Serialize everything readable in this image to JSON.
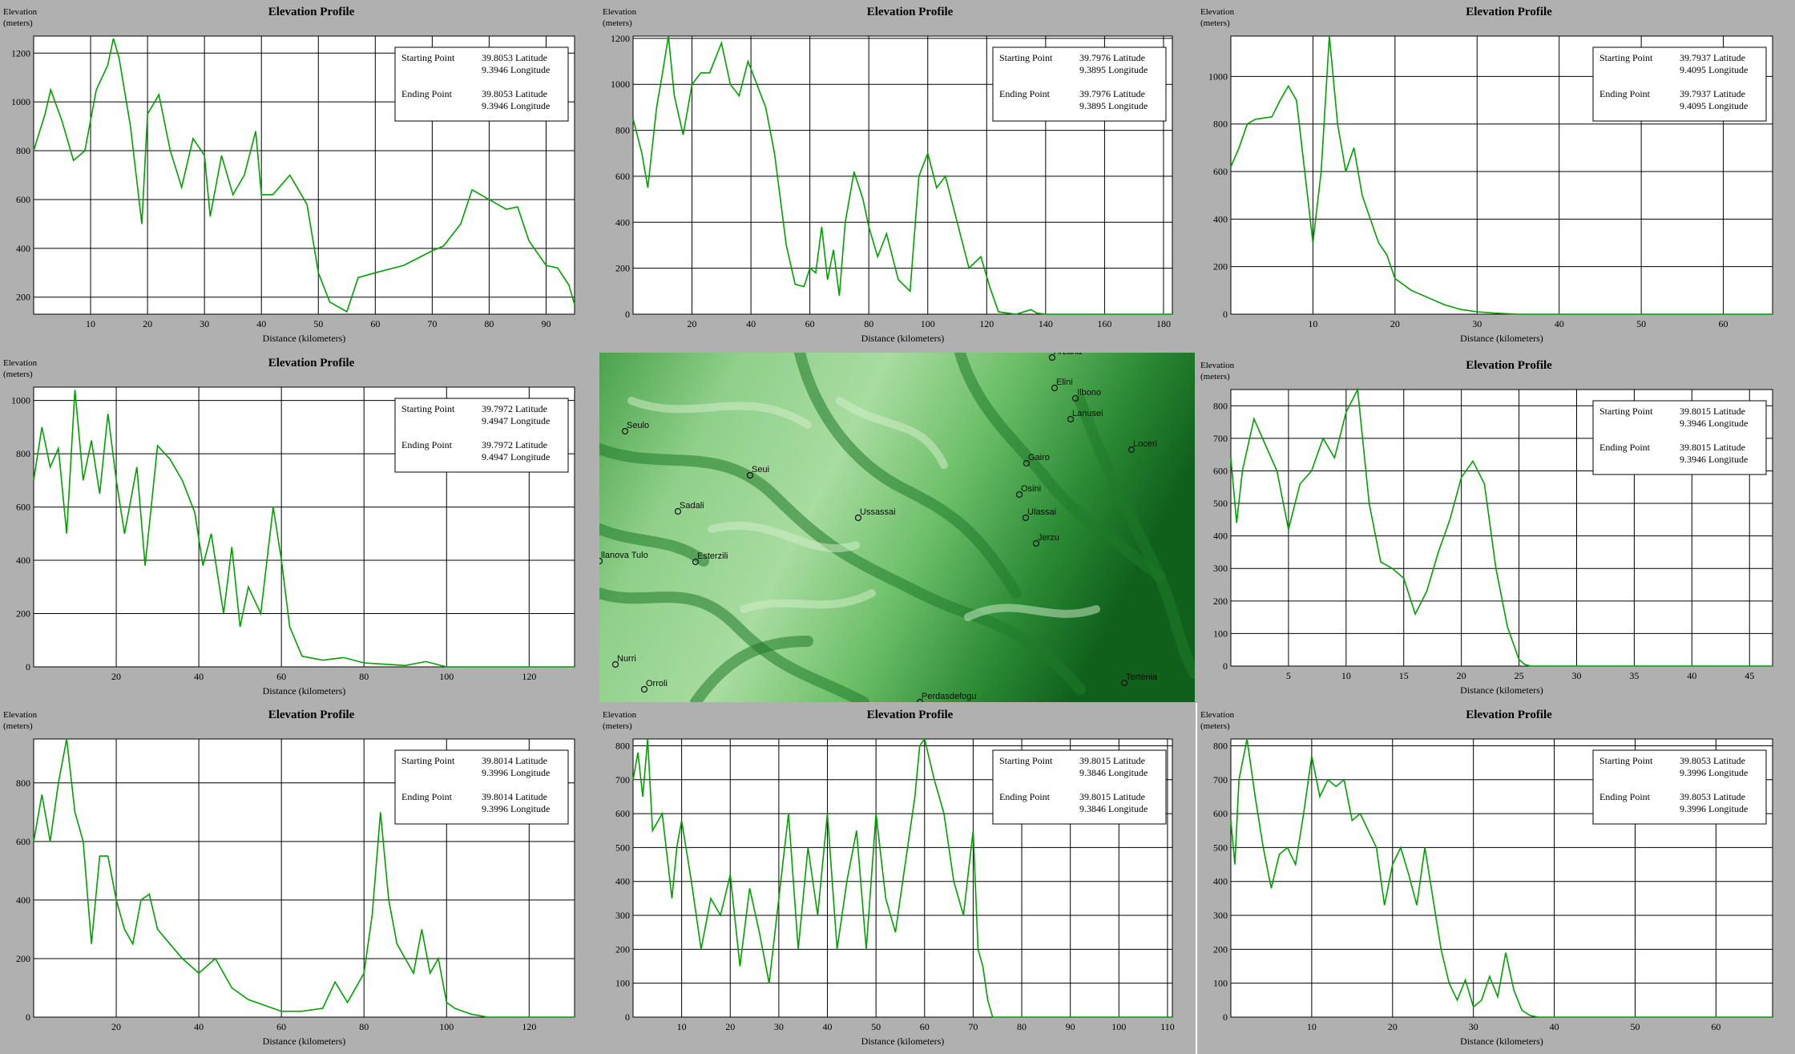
{
  "colors": {
    "line": "#00a000",
    "grid": "#000000",
    "plot_bg": "#ffffff",
    "page_bg": "#b0b0b0",
    "map_dark": "#0f6a1e",
    "map_light": "#c8e8c0"
  },
  "chart_data": [
    {
      "type": "line",
      "title": "Elevation Profile",
      "ylabel": "Elevation\n(meters)",
      "xlabel": "Distance (kilometers)",
      "xlim": [
        0,
        95
      ],
      "ylim": [
        130,
        1270
      ],
      "xticks": [
        10,
        20,
        30,
        40,
        50,
        60,
        70,
        80,
        90
      ],
      "yticks": [
        200,
        400,
        600,
        800,
        1000,
        1200
      ],
      "grid": true,
      "legend": {
        "start_label": "Starting Point",
        "start_lat": "39.8053 Latitude",
        "start_lon": "9.3946 Longitude",
        "end_label": "Ending Point",
        "end_lat": "39.8053 Latitude",
        "end_lon": "9.3946 Longitude",
        "placement": "top-right"
      },
      "series": [
        {
          "x": [
            0,
            2,
            3,
            5,
            7,
            9,
            11,
            13,
            14,
            15,
            17,
            19,
            20,
            22,
            24,
            26,
            28,
            30,
            31,
            33,
            35,
            37,
            39,
            40,
            42,
            45,
            48,
            50,
            52,
            55,
            57,
            60,
            65,
            70,
            72,
            75,
            77,
            80,
            83,
            85,
            87,
            90,
            92,
            94,
            95
          ],
          "y": [
            800,
            950,
            1050,
            920,
            760,
            800,
            1050,
            1150,
            1260,
            1180,
            900,
            500,
            950,
            1030,
            800,
            650,
            850,
            780,
            530,
            780,
            620,
            700,
            880,
            620,
            620,
            700,
            580,
            300,
            180,
            140,
            280,
            300,
            330,
            390,
            410,
            500,
            640,
            600,
            560,
            570,
            430,
            330,
            320,
            250,
            170
          ]
        }
      ]
    },
    {
      "type": "line",
      "title": "Elevation Profile",
      "ylabel": "Elevation\n(meters)",
      "xlabel": "Distance (kilometers)",
      "xlim": [
        0,
        183
      ],
      "ylim": [
        0,
        1210
      ],
      "xticks": [
        20,
        40,
        60,
        80,
        100,
        120,
        140,
        160,
        180
      ],
      "yticks": [
        0,
        200,
        400,
        600,
        800,
        1000,
        1200
      ],
      "grid": true,
      "legend": {
        "start_label": "Starting Point",
        "start_lat": "39.7976 Latitude",
        "start_lon": "9.3895 Longitude",
        "end_label": "Ending Point",
        "end_lat": "39.7976 Latitude",
        "end_lon": "9.3895 Longitude",
        "placement": "top-right"
      },
      "series": [
        {
          "x": [
            0,
            3,
            5,
            8,
            10,
            12,
            14,
            17,
            20,
            23,
            26,
            30,
            33,
            36,
            39,
            42,
            45,
            48,
            52,
            55,
            58,
            60,
            62,
            64,
            66,
            68,
            70,
            72,
            75,
            78,
            80,
            83,
            86,
            90,
            94,
            97,
            100,
            103,
            106,
            110,
            114,
            118,
            121,
            124,
            130,
            135,
            137,
            140,
            150,
            160,
            170,
            183
          ],
          "y": [
            850,
            700,
            550,
            900,
            1050,
            1210,
            950,
            780,
            1000,
            1050,
            1050,
            1180,
            1000,
            950,
            1100,
            1000,
            900,
            700,
            300,
            130,
            120,
            200,
            180,
            380,
            150,
            280,
            80,
            400,
            620,
            500,
            380,
            250,
            350,
            150,
            100,
            600,
            700,
            550,
            600,
            400,
            200,
            250,
            120,
            10,
            0,
            20,
            5,
            0,
            0,
            0,
            0,
            0
          ]
        }
      ]
    },
    {
      "type": "line",
      "title": "Elevation Profile",
      "ylabel": "Elevation\n(meters)",
      "xlabel": "Distance (kilometers)",
      "xlim": [
        0,
        66
      ],
      "ylim": [
        0,
        1170
      ],
      "xticks": [
        10,
        20,
        30,
        40,
        50,
        60
      ],
      "yticks": [
        0,
        200,
        400,
        600,
        800,
        1000
      ],
      "grid": true,
      "legend": {
        "start_label": "Starting Point",
        "start_lat": "39.7937 Latitude",
        "start_lon": "9.4095 Longitude",
        "end_label": "Ending Point",
        "end_lat": "39.7937 Latitude",
        "end_lon": "9.4095 Longitude",
        "placement": "top-right"
      },
      "series": [
        {
          "x": [
            0,
            1,
            2,
            3,
            5,
            6,
            7,
            8,
            9,
            10,
            11,
            12,
            13,
            14,
            15,
            16,
            17,
            18,
            19,
            20,
            22,
            24,
            26,
            28,
            30,
            32,
            35,
            40,
            50,
            60,
            66
          ],
          "y": [
            620,
            700,
            800,
            820,
            830,
            900,
            960,
            900,
            600,
            300,
            600,
            1170,
            800,
            600,
            700,
            500,
            400,
            300,
            250,
            150,
            100,
            70,
            40,
            20,
            10,
            5,
            0,
            0,
            0,
            0,
            0
          ]
        }
      ]
    },
    {
      "type": "line",
      "title": "Elevation Profile",
      "ylabel": "Elevation\n(meters)",
      "xlabel": "Distance (kilometers)",
      "xlim": [
        0,
        131
      ],
      "ylim": [
        0,
        1050
      ],
      "xticks": [
        20,
        40,
        60,
        80,
        100,
        120
      ],
      "yticks": [
        0,
        200,
        400,
        600,
        800,
        1000
      ],
      "grid": true,
      "legend": {
        "start_label": "Starting Point",
        "start_lat": "39.7972 Latitude",
        "start_lon": "9.4947 Longitude",
        "end_label": "Ending Point",
        "end_lat": "39.7972 Latitude",
        "end_lon": "9.4947 Longitude",
        "placement": "top-right"
      },
      "series": [
        {
          "x": [
            0,
            2,
            4,
            6,
            8,
            10,
            12,
            14,
            16,
            18,
            20,
            22,
            25,
            27,
            30,
            33,
            36,
            39,
            41,
            43,
            46,
            48,
            50,
            52,
            55,
            58,
            60,
            62,
            65,
            70,
            75,
            80,
            85,
            90,
            95,
            100,
            110,
            120,
            131
          ],
          "y": [
            700,
            900,
            750,
            820,
            500,
            1040,
            700,
            850,
            650,
            950,
            700,
            500,
            750,
            380,
            830,
            780,
            700,
            580,
            380,
            500,
            200,
            450,
            150,
            300,
            200,
            600,
            400,
            150,
            40,
            25,
            35,
            15,
            10,
            5,
            20,
            0,
            0,
            0,
            0
          ]
        }
      ]
    },
    {
      "type": "line",
      "title": "Elevation Profile",
      "ylabel": "Elevation\n(meters)",
      "xlabel": "Distance (kilometers)",
      "xlim": [
        0,
        47
      ],
      "ylim": [
        0,
        850
      ],
      "xticks": [
        5,
        10,
        15,
        20,
        25,
        30,
        35,
        40,
        45
      ],
      "yticks": [
        0,
        100,
        200,
        300,
        400,
        500,
        600,
        700,
        800
      ],
      "grid": true,
      "legend": {
        "start_label": "Starting Point",
        "start_lat": "39.8015 Latitude",
        "start_lon": "9.3946 Longitude",
        "end_label": "Ending Point",
        "end_lat": "39.8015 Latitude",
        "end_lon": "9.3946 Longitude",
        "placement": "top-right"
      },
      "series": [
        {
          "x": [
            0,
            0.5,
            1,
            2,
            3,
            4,
            5,
            6,
            7,
            8,
            9,
            10,
            11,
            12,
            13,
            14,
            15,
            16,
            17,
            18,
            19,
            20,
            21,
            22,
            23,
            24,
            25,
            25.5,
            26,
            30,
            35,
            40,
            47
          ],
          "y": [
            640,
            440,
            600,
            760,
            680,
            600,
            420,
            560,
            600,
            700,
            640,
            780,
            850,
            500,
            320,
            300,
            270,
            160,
            230,
            350,
            450,
            580,
            630,
            560,
            300,
            120,
            20,
            5,
            0,
            0,
            0,
            0,
            0
          ]
        }
      ]
    },
    {
      "type": "line",
      "title": "Elevation Profile",
      "ylabel": "Elevation\n(meters)",
      "xlabel": "Distance (kilometers)",
      "xlim": [
        0,
        131
      ],
      "ylim": [
        0,
        950
      ],
      "xticks": [
        20,
        40,
        60,
        80,
        100,
        120
      ],
      "yticks": [
        0,
        200,
        400,
        600,
        800
      ],
      "grid": true,
      "legend": {
        "start_label": "Starting Point",
        "start_lat": "39.8014 Latitude",
        "start_lon": "9.3996 Longitude",
        "end_label": "Ending Point",
        "end_lat": "39.8014 Latitude",
        "end_lon": "9.3996 Longitude",
        "placement": "top-right"
      },
      "series": [
        {
          "x": [
            0,
            2,
            4,
            6,
            8,
            10,
            12,
            14,
            16,
            18,
            20,
            22,
            24,
            26,
            28,
            30,
            33,
            36,
            40,
            44,
            48,
            52,
            56,
            60,
            65,
            70,
            73,
            76,
            80,
            82,
            84,
            86,
            88,
            90,
            92,
            94,
            96,
            98,
            100,
            102,
            104,
            106,
            110,
            120,
            131
          ],
          "y": [
            600,
            760,
            600,
            800,
            950,
            700,
            600,
            250,
            550,
            550,
            400,
            300,
            250,
            400,
            420,
            300,
            250,
            200,
            150,
            200,
            100,
            60,
            40,
            20,
            20,
            30,
            120,
            50,
            150,
            350,
            700,
            400,
            250,
            200,
            150,
            300,
            150,
            200,
            50,
            30,
            20,
            10,
            0,
            0,
            0
          ]
        }
      ]
    },
    {
      "type": "line",
      "title": "Elevation Profile",
      "ylabel": "Elevation\n(meters)",
      "xlabel": "Distance (kilometers)",
      "xlim": [
        0,
        111
      ],
      "ylim": [
        0,
        820
      ],
      "xticks": [
        10,
        20,
        30,
        40,
        50,
        60,
        70,
        80,
        90,
        100,
        110
      ],
      "yticks": [
        0,
        100,
        200,
        300,
        400,
        500,
        600,
        700,
        800
      ],
      "grid": true,
      "legend": {
        "start_label": "Starting Point",
        "start_lat": "39.8015 Latitude",
        "start_lon": "9.3846 Longitude",
        "end_label": "Ending Point",
        "end_lat": "39.8015 Latitude",
        "end_lon": "9.3846 Longitude",
        "placement": "top-right"
      },
      "series": [
        {
          "x": [
            0,
            1,
            2,
            3,
            4,
            6,
            8,
            9,
            10,
            12,
            14,
            16,
            18,
            20,
            22,
            24,
            26,
            28,
            30,
            32,
            34,
            36,
            38,
            40,
            42,
            44,
            46,
            48,
            50,
            52,
            54,
            56,
            58,
            59,
            60,
            62,
            64,
            66,
            68,
            70,
            71,
            72,
            73,
            74,
            80,
            90,
            100,
            111
          ],
          "y": [
            700,
            780,
            650,
            820,
            550,
            600,
            350,
            500,
            580,
            400,
            200,
            350,
            300,
            420,
            150,
            380,
            250,
            100,
            350,
            600,
            200,
            500,
            300,
            600,
            200,
            400,
            550,
            200,
            600,
            350,
            250,
            450,
            650,
            800,
            820,
            700,
            600,
            400,
            300,
            550,
            200,
            150,
            50,
            0,
            0,
            0,
            0,
            0
          ]
        }
      ]
    },
    {
      "type": "line",
      "title": "Elevation Profile",
      "ylabel": "Elevation\n(meters)",
      "xlabel": "Distance (kilometers)",
      "xlim": [
        0,
        67
      ],
      "ylim": [
        0,
        820
      ],
      "xticks": [
        10,
        20,
        30,
        40,
        50,
        60
      ],
      "yticks": [
        0,
        100,
        200,
        300,
        400,
        500,
        600,
        700,
        800
      ],
      "grid": true,
      "legend": {
        "start_label": "Starting Point",
        "start_lat": "39.8053 Latitude",
        "start_lon": "9.3996 Longitude",
        "end_label": "Ending Point",
        "end_lat": "39.8053 Latitude",
        "end_lon": "9.3996 Longitude",
        "placement": "top-right"
      },
      "series": [
        {
          "x": [
            0,
            0.5,
            1,
            2,
            3,
            4,
            5,
            6,
            7,
            8,
            9,
            10,
            11,
            12,
            13,
            14,
            15,
            16,
            17,
            18,
            19,
            20,
            21,
            22,
            23,
            24,
            25,
            26,
            27,
            28,
            29,
            30,
            31,
            32,
            33,
            34,
            35,
            36,
            37,
            38,
            40,
            45,
            50,
            60,
            67
          ],
          "y": [
            580,
            450,
            700,
            820,
            650,
            500,
            380,
            480,
            500,
            450,
            600,
            770,
            650,
            700,
            680,
            700,
            580,
            600,
            550,
            500,
            330,
            450,
            500,
            420,
            330,
            500,
            350,
            200,
            100,
            50,
            110,
            30,
            50,
            120,
            60,
            190,
            80,
            20,
            5,
            0,
            0,
            0,
            0,
            0,
            0
          ]
        }
      ]
    }
  ],
  "map": {
    "towns": [
      {
        "name": "Arzana"
      },
      {
        "name": "Elini"
      },
      {
        "name": "Ilbono"
      },
      {
        "name": "Lanusei"
      },
      {
        "name": "Seulo"
      },
      {
        "name": "Loceri"
      },
      {
        "name": "Gairo"
      },
      {
        "name": "Seui"
      },
      {
        "name": "Osini"
      },
      {
        "name": "Sadali"
      },
      {
        "name": "Ussassai"
      },
      {
        "name": "Ulassai"
      },
      {
        "name": "Jerzu"
      },
      {
        "name": "Esterzili"
      },
      {
        "name": "llanova Tulo"
      },
      {
        "name": "Nurri"
      },
      {
        "name": "Orroli"
      },
      {
        "name": "Tertenia"
      },
      {
        "name": "Perdasdefogu"
      }
    ]
  }
}
